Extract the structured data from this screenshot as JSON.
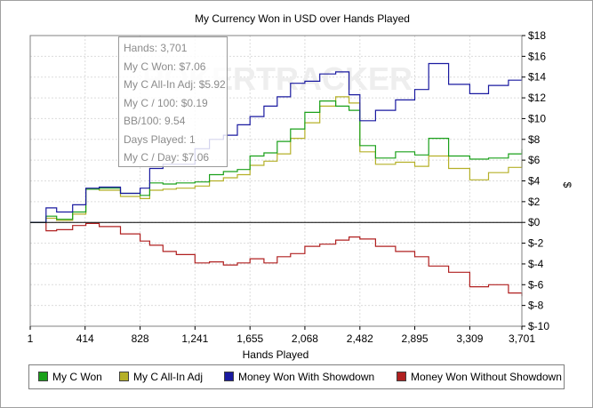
{
  "chart_data": {
    "type": "line",
    "title": "My Currency Won in USD over Hands Played",
    "xlabel": "Hands Played",
    "ylabel": "$",
    "xlim": [
      1,
      3701
    ],
    "ylim": [
      -10,
      18
    ],
    "x_ticks": [
      "1",
      "414",
      "828",
      "1,241",
      "1,655",
      "2,068",
      "2,482",
      "2,895",
      "3,309",
      "3,701"
    ],
    "y_ticks": [
      "$18",
      "$16",
      "$14",
      "$12",
      "$10",
      "$8",
      "$6",
      "$4",
      "$2",
      "$0",
      "$-2",
      "$-4",
      "$-6",
      "$-8",
      "$-10"
    ],
    "grid": true,
    "legend_position": "bottom",
    "watermark": "POKERTRACKER",
    "series": [
      {
        "name": "My C Won",
        "color": "#1aa01a",
        "x": [
          1,
          120,
          200,
          320,
          420,
          520,
          680,
          828,
          900,
          1000,
          1100,
          1241,
          1350,
          1455,
          1560,
          1655,
          1760,
          1860,
          1960,
          2068,
          2180,
          2300,
          2400,
          2482,
          2600,
          2750,
          2895,
          3000,
          3150,
          3309,
          3450,
          3600,
          3701
        ],
        "y": [
          0,
          0.6,
          0.3,
          1.0,
          3.2,
          3.3,
          2.8,
          2.6,
          3.8,
          3.7,
          3.8,
          3.9,
          4.6,
          4.9,
          5.1,
          6.4,
          6.7,
          7.8,
          9.0,
          10.6,
          11.7,
          11.2,
          10.8,
          7.4,
          6.2,
          6.8,
          6.5,
          8.1,
          6.4,
          6.1,
          6.2,
          6.6,
          7.06
        ]
      },
      {
        "name": "My C All-In Adj",
        "color": "#b5b028",
        "x": [
          1,
          120,
          200,
          320,
          420,
          520,
          680,
          828,
          900,
          1000,
          1100,
          1241,
          1350,
          1455,
          1560,
          1655,
          1760,
          1860,
          1960,
          2068,
          2180,
          2300,
          2400,
          2482,
          2600,
          2750,
          2895,
          3000,
          3150,
          3309,
          3450,
          3600,
          3701
        ],
        "y": [
          0,
          0.4,
          0.2,
          0.8,
          3.2,
          3.1,
          2.5,
          2.3,
          3.1,
          3.2,
          3.3,
          3.5,
          4.0,
          4.3,
          4.6,
          5.5,
          5.9,
          6.6,
          8.1,
          9.6,
          11.2,
          12.1,
          11.5,
          6.8,
          5.6,
          5.8,
          5.4,
          6.4,
          5.2,
          4.1,
          4.8,
          5.3,
          5.92
        ]
      },
      {
        "name": "Money Won With Showdown",
        "color": "#1a1aa0",
        "x": [
          1,
          120,
          200,
          320,
          420,
          520,
          680,
          828,
          900,
          1000,
          1100,
          1241,
          1350,
          1455,
          1560,
          1655,
          1760,
          1860,
          1960,
          2068,
          2180,
          2300,
          2400,
          2482,
          2600,
          2750,
          2895,
          3000,
          3150,
          3309,
          3450,
          3600,
          3701
        ],
        "y": [
          0,
          1.4,
          1.0,
          1.7,
          3.3,
          3.4,
          2.8,
          3.3,
          5.2,
          5.6,
          5.6,
          7.1,
          8.0,
          8.4,
          9.4,
          10.2,
          11.2,
          12.1,
          13.4,
          13.6,
          14.3,
          14.5,
          12.3,
          9.8,
          10.8,
          11.8,
          12.8,
          15.3,
          13.3,
          12.4,
          13.2,
          13.7,
          14.1
        ]
      },
      {
        "name": "Money Won Without Showdown",
        "color": "#b02020",
        "x": [
          1,
          120,
          200,
          320,
          420,
          520,
          680,
          828,
          900,
          1000,
          1100,
          1241,
          1350,
          1455,
          1560,
          1655,
          1760,
          1860,
          1960,
          2068,
          2180,
          2300,
          2400,
          2482,
          2600,
          2750,
          2895,
          3000,
          3150,
          3309,
          3450,
          3600,
          3701
        ],
        "y": [
          0,
          -0.8,
          -0.7,
          -0.3,
          -0.1,
          -0.4,
          -1.1,
          -1.8,
          -2.2,
          -2.8,
          -3.1,
          -3.9,
          -3.8,
          -4.1,
          -3.9,
          -3.5,
          -3.9,
          -3.3,
          -3.0,
          -2.3,
          -2.1,
          -1.7,
          -1.4,
          -1.6,
          -2.3,
          -2.8,
          -3.3,
          -4.2,
          -4.8,
          -6.2,
          -6.0,
          -6.8,
          -7.1
        ]
      }
    ]
  },
  "tooltip": {
    "hands": "Hands: 3,701",
    "won": "My C Won: $7.06",
    "allin": "My C All-In Adj: $5.92",
    "per100": "My C / 100: $0.19",
    "bb100": "BB/100: 9.54",
    "days": "Days Played: 1",
    "perday": "My C / Day: $7.06"
  }
}
